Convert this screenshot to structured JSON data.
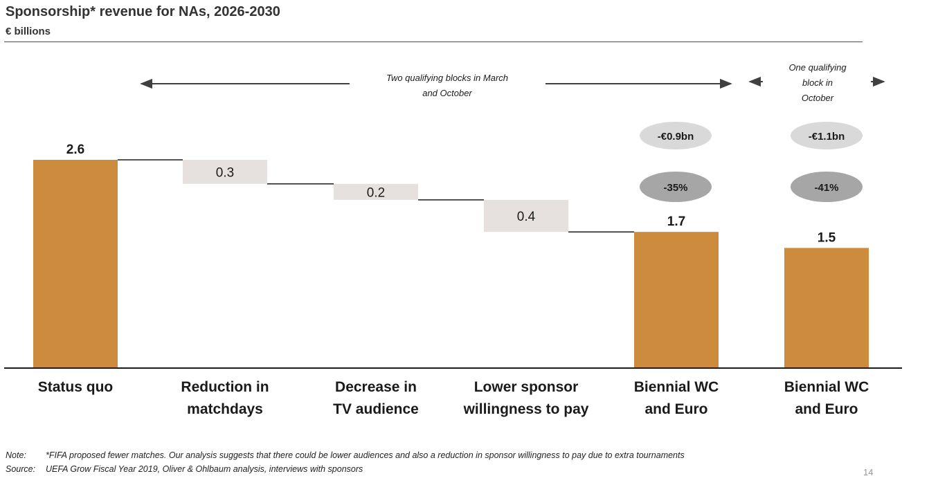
{
  "header": {
    "title": "Sponsorship* revenue for NAs, 2026-2030",
    "subtitle": "€ billions"
  },
  "annotations": {
    "two_blocks_line1": "Two qualifying blocks in March",
    "two_blocks_line2": "and October",
    "one_block_line1": "One qualifying",
    "one_block_line2": "block in",
    "one_block_line3": "October",
    "delta_a_abs": "-€0.9bn",
    "delta_a_pct": "-35%",
    "delta_b_abs": "-€1.1bn",
    "delta_b_pct": "-41%"
  },
  "footer": {
    "note_key": "Note:",
    "note_text": "*FIFA proposed fewer matches. Our analysis suggests that there could be lower audiences and also a reduction in sponsor willingness to pay due to extra tournaments",
    "source_key": "Source:",
    "source_text": "UEFA Grow Fiscal Year 2019, Oliver & Ohlbaum analysis, interviews with sponsors",
    "page_number": "14"
  },
  "colors": {
    "total_bar": "#cc8b3d",
    "decrease_bar": "#e6e1df",
    "bubble_light": "#d9d9d9",
    "bubble_dark": "#a6a6a6"
  },
  "chart_data": {
    "type": "bar",
    "subtype": "waterfall",
    "title": "Sponsorship* revenue for NAs, 2026-2030",
    "ylabel": "€ billions",
    "ylim": [
      0,
      2.6
    ],
    "grid": false,
    "categories": [
      [
        "Status quo"
      ],
      [
        "Reduction in",
        "matchdays"
      ],
      [
        "Decrease in",
        "TV audience"
      ],
      [
        "Lower sponsor",
        "willingness to pay"
      ],
      [
        "Biennial WC",
        "and Euro"
      ],
      [
        "Biennial WC",
        "and Euro"
      ]
    ],
    "bars": [
      {
        "kind": "total",
        "value": 2.6,
        "label": "2.6"
      },
      {
        "kind": "decrease",
        "value": 0.3,
        "label": "0.3"
      },
      {
        "kind": "decrease",
        "value": 0.2,
        "label": "0.2"
      },
      {
        "kind": "decrease",
        "value": 0.4,
        "label": "0.4"
      },
      {
        "kind": "total",
        "value": 1.7,
        "label": "1.7"
      },
      {
        "kind": "total",
        "value": 1.5,
        "label": "1.5"
      }
    ]
  }
}
